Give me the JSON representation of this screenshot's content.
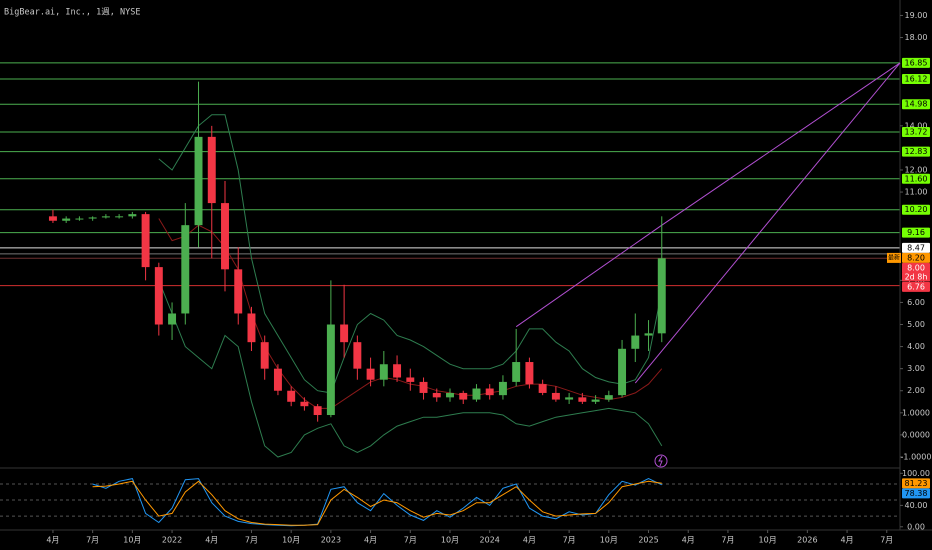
{
  "chart_data": [
    {
      "type": "candlestick",
      "title": "BigBear.ai, Inc., 1週, NYSE",
      "x": [
        "2021-04",
        "2021-05",
        "2021-06",
        "2021-07",
        "2021-08",
        "2021-09",
        "2021-10",
        "2021-11",
        "2021-12",
        "2022-01",
        "2022-02",
        "2022-03",
        "2022-04",
        "2022-05",
        "2022-06",
        "2022-07",
        "2022-08",
        "2022-09",
        "2022-10",
        "2022-11",
        "2022-12",
        "2023-01",
        "2023-02",
        "2023-03",
        "2023-04",
        "2023-05",
        "2023-06",
        "2023-07",
        "2023-08",
        "2023-09",
        "2023-10",
        "2023-11",
        "2023-12",
        "2024-01",
        "2024-02",
        "2024-03",
        "2024-04",
        "2024-05",
        "2024-06",
        "2024-07",
        "2024-08",
        "2024-09",
        "2024-10",
        "2024-11",
        "2024-12",
        "2025-01",
        "2025-02"
      ],
      "open": [
        9.9,
        9.7,
        9.8,
        9.8,
        9.85,
        9.9,
        9.9,
        10.0,
        7.6,
        5.0,
        5.5,
        9.5,
        13.5,
        10.5,
        7.5,
        5.5,
        4.2,
        3.0,
        2.0,
        1.5,
        1.3,
        0.9,
        5.0,
        4.2,
        3.0,
        2.5,
        3.2,
        2.6,
        2.4,
        1.9,
        1.7,
        1.9,
        1.6,
        2.1,
        1.8,
        2.4,
        3.3,
        2.3,
        1.9,
        1.6,
        1.7,
        1.5,
        1.6,
        1.8,
        3.9,
        4.5,
        4.6
      ],
      "high": [
        10.2,
        9.9,
        9.9,
        9.9,
        10.0,
        10.0,
        10.1,
        10.1,
        7.8,
        6.0,
        10.5,
        16.0,
        14.0,
        11.5,
        8.5,
        5.8,
        4.5,
        3.2,
        2.2,
        1.7,
        1.4,
        7.0,
        6.8,
        4.5,
        3.5,
        3.8,
        3.6,
        3.0,
        2.6,
        2.1,
        2.1,
        2.0,
        2.3,
        2.3,
        2.7,
        4.8,
        3.5,
        2.5,
        2.2,
        1.9,
        1.9,
        1.8,
        2.0,
        4.3,
        5.5,
        5.2,
        9.9
      ],
      "low": [
        9.6,
        9.6,
        9.7,
        9.7,
        9.8,
        9.8,
        9.8,
        7.0,
        4.5,
        4.3,
        5.0,
        8.5,
        8.0,
        6.5,
        5.0,
        3.8,
        2.5,
        1.8,
        1.3,
        1.1,
        0.6,
        0.8,
        3.5,
        2.5,
        2.2,
        2.2,
        2.4,
        2.0,
        1.6,
        1.5,
        1.5,
        1.4,
        1.5,
        1.6,
        1.6,
        2.2,
        2.1,
        1.8,
        1.5,
        1.4,
        1.4,
        1.4,
        1.5,
        1.7,
        3.3,
        3.8,
        4.2
      ],
      "close": [
        9.7,
        9.8,
        9.8,
        9.85,
        9.9,
        9.9,
        10.0,
        7.6,
        5.0,
        5.5,
        9.5,
        13.5,
        10.5,
        7.5,
        5.5,
        4.2,
        3.0,
        2.0,
        1.5,
        1.3,
        0.9,
        5.0,
        4.2,
        3.0,
        2.5,
        3.2,
        2.6,
        2.4,
        1.9,
        1.7,
        1.9,
        1.6,
        2.1,
        1.8,
        2.4,
        3.3,
        2.3,
        1.9,
        1.6,
        1.7,
        1.5,
        1.6,
        1.8,
        3.9,
        4.5,
        4.6,
        8.0
      ],
      "up_color": "#4caf50",
      "down_color": "#f23645",
      "bands": {
        "band_color": "#2e7d4f",
        "basis_color": "#8b1a1a",
        "upper": [
          null,
          null,
          null,
          null,
          null,
          null,
          null,
          null,
          12.5,
          12.0,
          13.0,
          14.0,
          14.5,
          14.5,
          12.0,
          8.0,
          5.5,
          4.5,
          3.5,
          2.5,
          2.0,
          1.9,
          3.5,
          5.0,
          5.5,
          5.2,
          4.5,
          4.3,
          4.0,
          3.6,
          3.2,
          3.0,
          3.0,
          3.0,
          3.2,
          3.8,
          4.8,
          4.8,
          4.2,
          3.8,
          3.0,
          2.6,
          2.4,
          2.3,
          2.5,
          3.5,
          6.5
        ],
        "basis": [
          null,
          null,
          null,
          null,
          null,
          null,
          null,
          null,
          9.8,
          8.8,
          9.0,
          9.5,
          9.2,
          8.5,
          7.5,
          5.5,
          4.0,
          3.0,
          2.2,
          1.6,
          1.2,
          1.2,
          1.6,
          2.0,
          2.4,
          2.6,
          2.5,
          2.3,
          2.2,
          2.0,
          1.9,
          1.8,
          1.8,
          1.9,
          2.0,
          2.2,
          2.3,
          2.3,
          2.2,
          2.0,
          1.8,
          1.7,
          1.6,
          1.7,
          1.9,
          2.3,
          3.0
        ],
        "lower": [
          null,
          null,
          null,
          null,
          null,
          null,
          null,
          null,
          7.0,
          5.5,
          4.0,
          3.5,
          3.0,
          4.5,
          4.0,
          1.5,
          -0.5,
          -1.0,
          -0.8,
          0.0,
          0.3,
          0.5,
          -0.5,
          -0.8,
          -0.5,
          0.0,
          0.4,
          0.6,
          0.8,
          0.8,
          0.9,
          1.0,
          1.0,
          1.0,
          0.9,
          0.5,
          0.4,
          0.6,
          0.8,
          0.9,
          1.0,
          1.1,
          1.2,
          1.1,
          1.0,
          0.5,
          -0.5
        ]
      },
      "trendlines": [
        {
          "color": "#b04fd0",
          "x": [
            "2024-03",
            "2025-02",
            "2026-08"
          ],
          "y": [
            4.9,
            9.5,
            16.85
          ]
        },
        {
          "color": "#b04fd0",
          "x": [
            "2024-12",
            "2026-08"
          ],
          "y": [
            2.35,
            16.85
          ]
        }
      ],
      "levels": [
        {
          "value": 16.85,
          "color": "#4caf50",
          "tag_color": "#76ff03"
        },
        {
          "value": 16.12,
          "color": "#4caf50",
          "tag_color": "#76ff03"
        },
        {
          "value": 14.98,
          "color": "#4caf50",
          "tag_color": "#76ff03"
        },
        {
          "value": 13.72,
          "color": "#4caf50",
          "tag_color": "#76ff03"
        },
        {
          "value": 12.83,
          "color": "#4caf50",
          "tag_color": "#76ff03"
        },
        {
          "value": 11.6,
          "label": "11.60",
          "color": "#4caf50",
          "tag_color": "#76ff03"
        },
        {
          "value": 10.2,
          "label": "10.20",
          "color": "#4caf50",
          "tag_color": "#76ff03"
        },
        {
          "value": 9.16,
          "color": "#4caf50",
          "tag_color": "#76ff03"
        },
        {
          "value": 8.47,
          "color": "#e0e0e0",
          "tag_color": "#ffffff"
        },
        {
          "value": 8.2,
          "label": "8.20",
          "color": "#777777",
          "tag_color": "#ff9800",
          "tag": "最新"
        },
        {
          "value": 8.0,
          "label": "8.00",
          "color": "#6d3030",
          "tag_color": "#f23645",
          "sub": "2d 8h"
        },
        {
          "value": 6.76,
          "color": "#d32f2f",
          "tag_color": "#f23645"
        }
      ],
      "xlim": [
        "2020-12",
        "2026-08"
      ],
      "xticks": [
        {
          "value": "2021-04",
          "label": "4月"
        },
        {
          "value": "2021-07",
          "label": "7月"
        },
        {
          "value": "2021-10",
          "label": "10月"
        },
        {
          "value": "2022-01",
          "label": "2022"
        },
        {
          "value": "2022-04",
          "label": "4月"
        },
        {
          "value": "2022-07",
          "label": "7月"
        },
        {
          "value": "2022-10",
          "label": "10月"
        },
        {
          "value": "2023-01",
          "label": "2023"
        },
        {
          "value": "2023-04",
          "label": "4月"
        },
        {
          "value": "2023-07",
          "label": "7月"
        },
        {
          "value": "2023-10",
          "label": "10月"
        },
        {
          "value": "2024-01",
          "label": "2024"
        },
        {
          "value": "2024-04",
          "label": "4月"
        },
        {
          "value": "2024-07",
          "label": "7月"
        },
        {
          "value": "2024-10",
          "label": "10月"
        },
        {
          "value": "2025-01",
          "label": "2025"
        },
        {
          "value": "2025-04",
          "label": "4月"
        },
        {
          "value": "2025-07",
          "label": "7月"
        },
        {
          "value": "2025-10",
          "label": "10月"
        },
        {
          "value": "2026-01",
          "label": "2026"
        },
        {
          "value": "2026-04",
          "label": "4月"
        },
        {
          "value": "2026-07",
          "label": "7月"
        }
      ],
      "ylim": [
        -1.5,
        19.7
      ],
      "yticks": [
        {
          "value": 19,
          "label": "19.00"
        },
        {
          "value": 18,
          "label": "18.00"
        },
        {
          "value": 14,
          "label": "14.00"
        },
        {
          "value": 12,
          "label": "12.00"
        },
        {
          "value": 11,
          "label": "11.00"
        },
        {
          "value": 7,
          "label": "7.00"
        },
        {
          "value": 6,
          "label": "6.00"
        },
        {
          "value": 5,
          "label": "5.00"
        },
        {
          "value": 4,
          "label": "4.00"
        },
        {
          "value": 3,
          "label": "3.00"
        },
        {
          "value": 2,
          "label": "2.00"
        },
        {
          "value": 1,
          "label": "1.0000"
        },
        {
          "value": 0,
          "label": "0.0000"
        },
        {
          "value": -1,
          "label": "-1.0000"
        }
      ]
    },
    {
      "type": "line",
      "series": [
        {
          "color": "#2196f3",
          "values": [
            null,
            null,
            null,
            80,
            72,
            85,
            90,
            25,
            8,
            35,
            88,
            90,
            45,
            20,
            10,
            6,
            4,
            3,
            2,
            3,
            5,
            70,
            75,
            45,
            30,
            62,
            40,
            22,
            12,
            30,
            18,
            35,
            55,
            40,
            72,
            80,
            35,
            20,
            15,
            28,
            22,
            25,
            60,
            85,
            78,
            90,
            78.38
          ]
        },
        {
          "color": "#ff9800",
          "values": [
            null,
            null,
            null,
            75,
            76,
            80,
            85,
            50,
            20,
            25,
            65,
            85,
            60,
            30,
            15,
            8,
            5,
            4,
            3,
            3,
            4,
            50,
            70,
            55,
            38,
            50,
            45,
            30,
            18,
            25,
            22,
            30,
            45,
            45,
            60,
            75,
            50,
            28,
            20,
            22,
            24,
            25,
            45,
            75,
            80,
            85,
            81.23
          ]
        }
      ],
      "bands": [
        80,
        50,
        20
      ],
      "ylim": [
        -6,
        108
      ],
      "yticks": [
        {
          "value": 100,
          "label": "100.00"
        },
        {
          "value": 40,
          "label": "40.00"
        },
        {
          "value": 0,
          "label": "0.00"
        }
      ]
    }
  ]
}
